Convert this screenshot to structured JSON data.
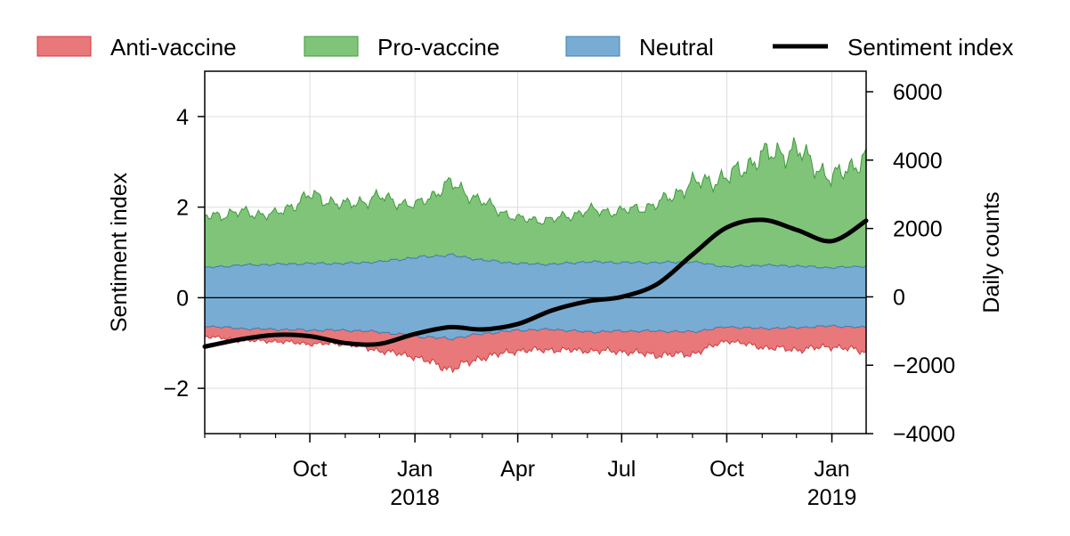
{
  "chart_data": {
    "type": "area",
    "left_axis": {
      "label": "Sentiment index",
      "range": [
        -3,
        5
      ],
      "ticks": [
        -2,
        0,
        2,
        4
      ],
      "tick_labels": [
        "−2",
        "0",
        "2",
        "4"
      ]
    },
    "right_axis": {
      "label": "Daily counts",
      "range": [
        -4000,
        6600
      ],
      "ticks": [
        -4000,
        -2000,
        0,
        2000,
        4000,
        6000
      ],
      "tick_labels": [
        "−4000",
        "−2000",
        "0",
        "2000",
        "4000",
        "6000"
      ]
    },
    "x_axis": {
      "range": [
        "2017-07-01",
        "2019-01-31"
      ],
      "major_ticks": [
        {
          "date": "2017-10-01",
          "label": "Oct",
          "sublabel": ""
        },
        {
          "date": "2018-01-01",
          "label": "Jan",
          "sublabel": "2018"
        },
        {
          "date": "2018-04-01",
          "label": "Apr",
          "sublabel": ""
        },
        {
          "date": "2018-07-01",
          "label": "Jul",
          "sublabel": ""
        },
        {
          "date": "2018-10-01",
          "label": "Oct",
          "sublabel": ""
        },
        {
          "date": "2019-01-01",
          "label": "Jan",
          "sublabel": "2019"
        }
      ]
    },
    "grid": true,
    "legend": {
      "placement": "top",
      "entries": [
        {
          "label": "Anti-vaccine",
          "kind": "area",
          "color": "#e8787a"
        },
        {
          "label": "Pro-vaccine",
          "kind": "area",
          "color": "#80c47a"
        },
        {
          "label": "Neutral",
          "kind": "area",
          "color": "#79acd3"
        },
        {
          "label": "Sentiment index",
          "kind": "line",
          "color": "#000000"
        }
      ]
    },
    "series": [
      {
        "name": "Neutral",
        "axis": "right",
        "stack": "symmetric around zero",
        "x": [
          "2017-07-01",
          "2017-08-01",
          "2017-09-01",
          "2017-10-01",
          "2017-11-01",
          "2017-12-01",
          "2018-01-01",
          "2018-02-01",
          "2018-03-01",
          "2018-04-01",
          "2018-05-01",
          "2018-06-01",
          "2018-07-01",
          "2018-08-01",
          "2018-09-01",
          "2018-10-01",
          "2018-11-01",
          "2018-12-01",
          "2019-01-01",
          "2019-01-31"
        ],
        "values": [
          1700,
          1850,
          1900,
          1950,
          1950,
          2050,
          2300,
          2450,
          2150,
          1950,
          1900,
          2050,
          2000,
          2000,
          2050,
          1750,
          1850,
          1800,
          1700,
          1800
        ]
      },
      {
        "name": "Pro-vaccine",
        "axis": "right",
        "x": [
          "2017-07-01",
          "2017-08-01",
          "2017-09-01",
          "2017-10-01",
          "2017-11-01",
          "2017-12-01",
          "2018-01-01",
          "2018-02-01",
          "2018-03-01",
          "2018-04-01",
          "2018-05-01",
          "2018-06-01",
          "2018-07-01",
          "2018-08-01",
          "2018-09-01",
          "2018-10-01",
          "2018-11-01",
          "2018-12-01",
          "2019-01-01",
          "2019-01-31"
        ],
        "values": [
          1500,
          1550,
          1450,
          2000,
          1700,
          1900,
          1500,
          2100,
          1700,
          1300,
          1300,
          1500,
          1500,
          1700,
          2300,
          2600,
          3200,
          3400,
          2600,
          3200
        ]
      },
      {
        "name": "Anti-vaccine",
        "axis": "right",
        "x": [
          "2017-07-01",
          "2017-08-01",
          "2017-09-01",
          "2017-10-01",
          "2017-11-01",
          "2017-12-01",
          "2018-01-01",
          "2018-02-01",
          "2018-03-01",
          "2018-04-01",
          "2018-05-01",
          "2018-06-01",
          "2018-07-01",
          "2018-08-01",
          "2018-09-01",
          "2018-10-01",
          "2018-11-01",
          "2018-12-01",
          "2019-01-01",
          "2019-01-31"
        ],
        "values": [
          300,
          350,
          350,
          400,
          400,
          550,
          600,
          900,
          700,
          600,
          600,
          550,
          600,
          700,
          650,
          400,
          550,
          650,
          600,
          700
        ]
      },
      {
        "name": "Sentiment index",
        "axis": "left",
        "x": [
          "2017-07-01",
          "2017-08-01",
          "2017-09-01",
          "2017-10-01",
          "2017-11-01",
          "2017-12-01",
          "2018-01-01",
          "2018-02-01",
          "2018-03-01",
          "2018-04-01",
          "2018-05-01",
          "2018-06-01",
          "2018-07-01",
          "2018-08-01",
          "2018-09-01",
          "2018-10-01",
          "2018-11-01",
          "2018-12-01",
          "2019-01-01",
          "2019-01-31"
        ],
        "values": [
          -1.08,
          -0.92,
          -0.82,
          -0.85,
          -1.0,
          -1.02,
          -0.8,
          -0.65,
          -0.7,
          -0.58,
          -0.28,
          -0.08,
          0.02,
          0.3,
          0.95,
          1.55,
          1.72,
          1.5,
          1.25,
          1.7
        ]
      }
    ]
  }
}
